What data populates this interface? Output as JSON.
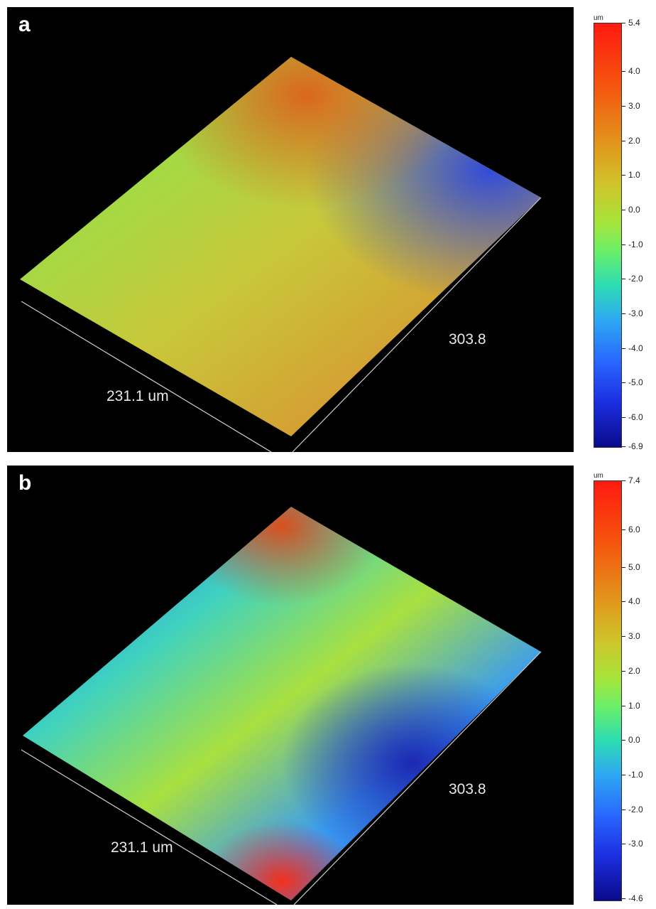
{
  "panel_a": {
    "label": "a",
    "dim_x": "231.1 um",
    "dim_y": "303.8",
    "scale": {
      "unit": "um",
      "ticks": [
        "5.4",
        "4.0",
        "3.0",
        "2.0",
        "1.0",
        "0.0",
        "-1.0",
        "-2.0",
        "-3.0",
        "-4.0",
        "-5.0",
        "-6.0",
        "-6.9"
      ]
    }
  },
  "panel_b": {
    "label": "b",
    "dim_x": "231.1 um",
    "dim_y": "303.8",
    "scale": {
      "unit": "um",
      "ticks": [
        "7.4",
        "6.0",
        "5.0",
        "4.0",
        "3.0",
        "2.0",
        "1.0",
        "0.0",
        "-1.0",
        "-2.0",
        "-3.0",
        "-4.6"
      ]
    }
  }
}
